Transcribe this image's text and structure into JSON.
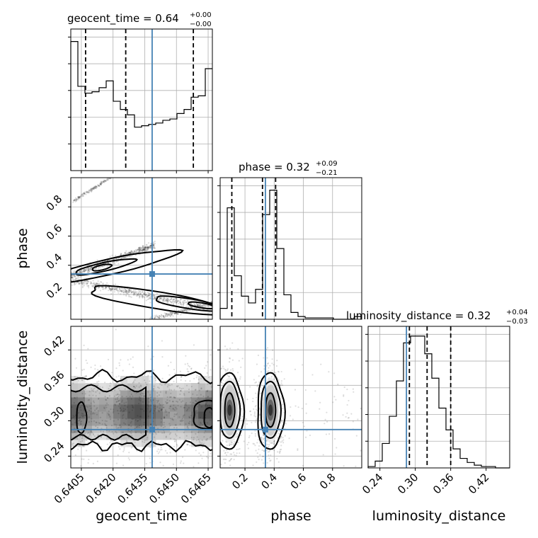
{
  "chart_data": {
    "type": "corner",
    "parameters": [
      "geocent_time",
      "phase",
      "luminosity_distance"
    ],
    "truths": {
      "geocent_time": 0.64385,
      "phase": 0.34,
      "luminosity_distance": 0.285
    },
    "titles": [
      {
        "param": "geocent_time",
        "value": "0.64",
        "plus": "+0.00",
        "minus": "−0.00"
      },
      {
        "param": "phase",
        "value": "0.32",
        "plus": "+0.09",
        "minus": "−0.21"
      },
      {
        "param": "luminosity_distance",
        "value": "0.32",
        "plus": "+0.04",
        "minus": "−0.03"
      }
    ],
    "ranges": {
      "geocent_time": [
        0.64,
        0.6467
      ],
      "phase": [
        0.03,
        1.0
      ],
      "luminosity_distance": [
        0.22,
        0.46
      ]
    },
    "ticks": {
      "geocent_time": [
        "0.6405",
        "0.6420",
        "0.6435",
        "0.6450",
        "0.6465"
      ],
      "phase": [
        "0.2",
        "0.4",
        "0.6",
        "0.8"
      ],
      "luminosity_distance": [
        "0.24",
        "0.30",
        "0.36",
        "0.42"
      ]
    },
    "tick_values": {
      "geocent_time": [
        0.6405,
        0.642,
        0.6435,
        0.645,
        0.6465
      ],
      "phase": [
        0.2,
        0.4,
        0.6,
        0.8
      ],
      "luminosity_distance": [
        0.24,
        0.3,
        0.36,
        0.42
      ]
    },
    "quantiles": {
      "geocent_time": [
        0.6407,
        0.6426,
        0.6458
      ],
      "phase": [
        0.11,
        0.32,
        0.41
      ],
      "luminosity_distance": [
        0.29,
        0.32,
        0.36
      ]
    },
    "hist_geocent_time": {
      "edges_start": 0.64,
      "bin_width": 0.000335,
      "counts": [
        0.95,
        0.62,
        0.57,
        0.58,
        0.61,
        0.66,
        0.51,
        0.45,
        0.41,
        0.32,
        0.33,
        0.34,
        0.35,
        0.37,
        0.38,
        0.42,
        0.45,
        0.54,
        0.55,
        0.75
      ]
    },
    "hist_phase": {
      "edges_start": 0.03,
      "bin_width": 0.0485,
      "counts": [
        0.08,
        0.82,
        0.32,
        0.17,
        0.12,
        0.22,
        0.77,
        0.95,
        0.52,
        0.18,
        0.05,
        0.02,
        0.01,
        0.01,
        0.01,
        0.01,
        0.0,
        0.0,
        0.0,
        0.02
      ]
    },
    "hist_luminosity_distance": {
      "edges_start": 0.22,
      "bin_width": 0.012,
      "counts": [
        0.01,
        0.05,
        0.18,
        0.38,
        0.64,
        0.92,
        0.97,
        0.97,
        0.84,
        0.66,
        0.44,
        0.28,
        0.14,
        0.07,
        0.04,
        0.02,
        0.01,
        0.01,
        0.0,
        0.0
      ]
    }
  }
}
